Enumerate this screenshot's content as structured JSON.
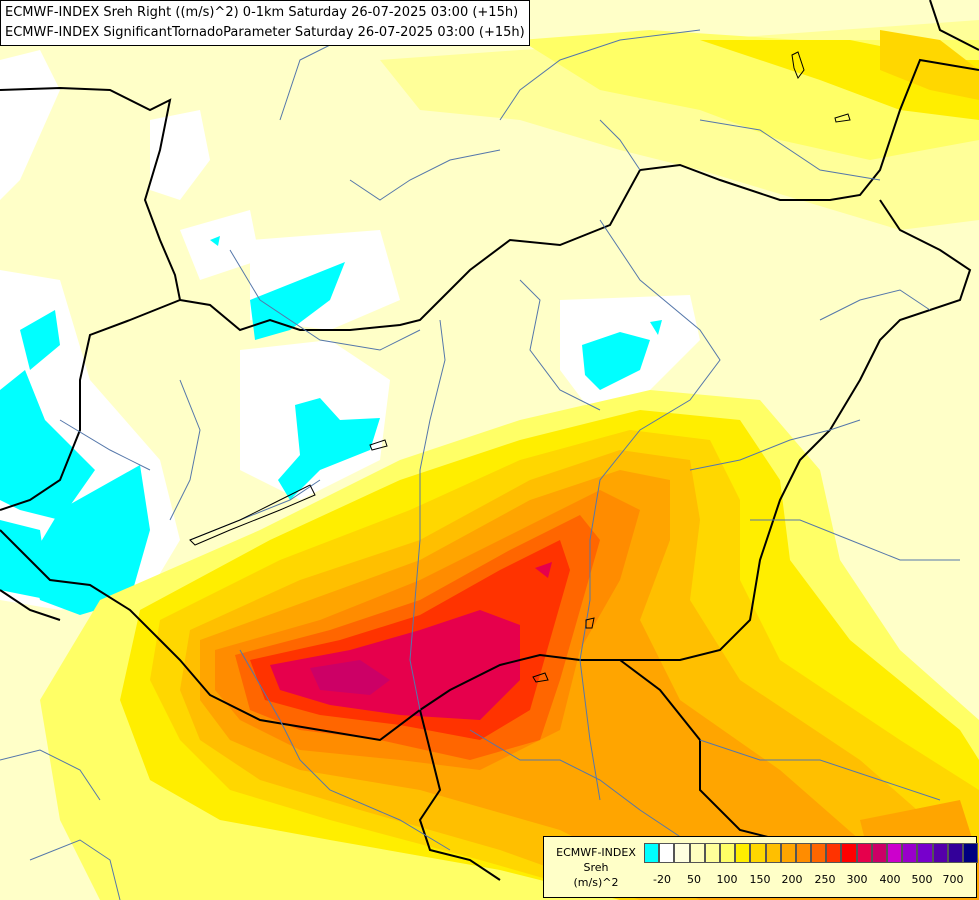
{
  "header": {
    "line1": "ECMWF-INDEX Sreh Right ((m/s)^2) 0-1km Saturday 26-07-2025 03:00 (+15h)",
    "line2": "ECMWF-INDEX SignificantTornadoParameter Saturday 26-07-2025 03:00 (+15h)"
  },
  "legend": {
    "title": "ECMWF-INDEX",
    "variable": "Sreh",
    "unit": "(m/s)^2",
    "colors": [
      "#00ffff",
      "#ffffff",
      "#ffffe0",
      "#ffffc0",
      "#ffff99",
      "#ffff66",
      "#ffee00",
      "#ffd700",
      "#ffbf00",
      "#ffa500",
      "#ff8c00",
      "#ff6600",
      "#ff3300",
      "#ff0000",
      "#e6004c",
      "#cc0066",
      "#cc00cc",
      "#9900cc",
      "#7700cc",
      "#5500aa",
      "#330099",
      "#000080"
    ],
    "ticks": [
      "-20",
      "50",
      "100",
      "150",
      "200",
      "250",
      "300",
      "400",
      "500",
      "700"
    ]
  }
}
